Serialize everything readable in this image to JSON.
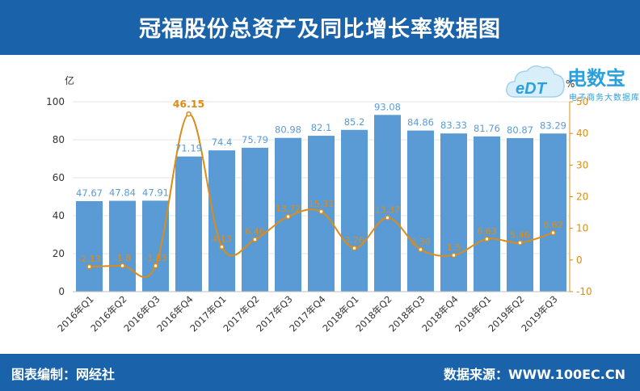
{
  "header": {
    "title": "冠福股份总资产及同比增长率数据图"
  },
  "footer": {
    "left": "图表编制：网经社",
    "right": "数据来源：WWW.100EC.CN"
  },
  "logo": {
    "brand": "电数宝",
    "sub": "电子商务大数据库",
    "mark": "eDT"
  },
  "colors": {
    "header_bg": "#1a63ab",
    "bar": "#5b9bd5",
    "line": "#dc8c16",
    "bar_label": "#5b9bd5",
    "line_label": "#dc8c16"
  },
  "chart_data": {
    "type": "bar",
    "categories": [
      "2016年Q1",
      "2016年Q2",
      "2016年Q3",
      "2016年Q4",
      "2017年Q1",
      "2017年Q2",
      "2017年Q3",
      "2017年Q4",
      "2018年Q1",
      "2018年Q2",
      "2018年Q3",
      "2018年Q4",
      "2019年Q1",
      "2019年Q2",
      "2019年Q3"
    ],
    "series": [
      {
        "type": "bar",
        "axis": "left",
        "values": [
          47.67,
          47.84,
          47.91,
          71.19,
          74.4,
          75.79,
          80.98,
          82.1,
          85.2,
          93.08,
          84.86,
          83.33,
          81.76,
          80.87,
          83.29
        ],
        "labels": [
          "47.67",
          "47.84",
          "47.91",
          "71.19",
          "74.4",
          "75.79",
          "80.98",
          "82.1",
          "85.2",
          "93.08",
          "84.86",
          "83.33",
          "81.76",
          "80.87",
          "83.29"
        ]
      },
      {
        "type": "line",
        "axis": "right",
        "values": [
          -2.13,
          -1.8,
          -1.83,
          46.15,
          4.13,
          6.46,
          13.72,
          15.31,
          3.76,
          13.37,
          3.3,
          1.5,
          6.63,
          5.46,
          8.62
        ],
        "labels": [
          "-2.13",
          "-1.8",
          "-1.83",
          "46.15",
          "4.13",
          "6.46",
          "13.72",
          "15.31",
          "3.76",
          "13.37",
          "3.30",
          "1.5",
          "6.63",
          "5.46",
          "8.62"
        ]
      }
    ],
    "yleft": {
      "unit": "亿",
      "ylim": [
        0,
        100
      ],
      "ticks": [
        "0",
        "20",
        "40",
        "60",
        "80",
        "100"
      ]
    },
    "yright": {
      "unit": "%",
      "ylim": [
        -10,
        50
      ],
      "ticks": [
        "-10",
        "0",
        "10",
        "20",
        "30",
        "40",
        "50"
      ]
    }
  }
}
